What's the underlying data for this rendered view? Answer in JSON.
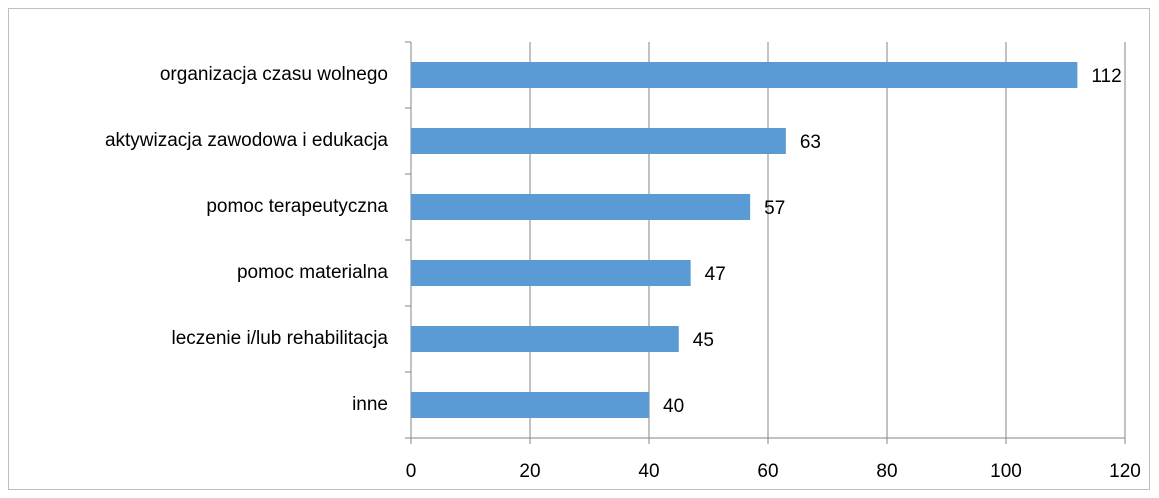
{
  "chart_data": {
    "type": "bar",
    "categories": [
      "organizacja czasu wolnego",
      "aktywizacja zawodowa i edukacja",
      "pomoc terapeutyczna",
      "pomoc materialna",
      "leczenie i/lub rehabilitacja",
      "inne"
    ],
    "values": [
      112,
      63,
      57,
      47,
      45,
      40
    ],
    "color": "#5b9bd5",
    "xlim": [
      0,
      120
    ],
    "xticks": [
      0,
      20,
      40,
      60,
      80,
      100,
      120
    ],
    "grid": true
  }
}
